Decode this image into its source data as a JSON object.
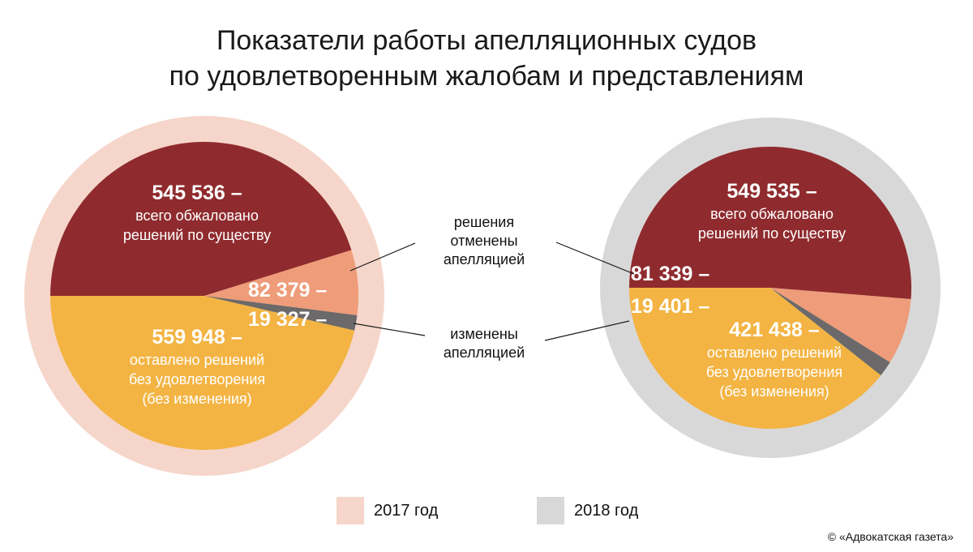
{
  "title": {
    "line1": "Показатели работы апелляционных судов",
    "line2": "по удовлетворенным жалобам и представлениям"
  },
  "colors": {
    "appealed": "#8f2b2e",
    "cancelled": "#ee9c79",
    "changed": "#6b6969",
    "left_unchanged": "#f3b443",
    "ring_2017": "#f6d6ca",
    "ring_2018": "#d9d8d8"
  },
  "chart_data": [
    {
      "type": "pie",
      "year": "2017 год",
      "slices": [
        {
          "key": "appealed",
          "value": 545536,
          "value_label": "545 536 –",
          "text_lines": [
            "всего обжаловано",
            "решений по существу"
          ]
        },
        {
          "key": "cancelled",
          "value": 82379,
          "value_label": "82 379 –",
          "text_lines": []
        },
        {
          "key": "changed",
          "value": 19327,
          "value_label": "19 327 –",
          "text_lines": []
        },
        {
          "key": "left_unchanged",
          "value": 559948,
          "value_label": "559 948 –",
          "text_lines": [
            "оставлено решений",
            "без удовлетворения",
            "(без изменения)"
          ]
        }
      ]
    },
    {
      "type": "pie",
      "year": "2018 год",
      "slices": [
        {
          "key": "appealed",
          "value": 549535,
          "value_label": "549 535 –",
          "text_lines": [
            "всего обжаловано",
            "решений по существу"
          ]
        },
        {
          "key": "cancelled",
          "value": 81339,
          "value_label": "81 339 –",
          "text_lines": []
        },
        {
          "key": "changed",
          "value": 19401,
          "value_label": "19 401 –",
          "text_lines": []
        },
        {
          "key": "left_unchanged",
          "value": 421438,
          "value_label": "421 438 –",
          "text_lines": [
            "оставлено решений",
            "без удовлетворения",
            "(без изменения)"
          ]
        }
      ]
    }
  ],
  "callouts": {
    "cancelled": [
      "решения",
      "отменены",
      "апелляцией"
    ],
    "changed": [
      "изменены",
      "апелляцией"
    ]
  },
  "legend": [
    {
      "label": "2017 год",
      "color_key": "ring_2017"
    },
    {
      "label": "2018 год",
      "color_key": "ring_2018"
    }
  ],
  "credit": "© «Адвокатская газета»"
}
